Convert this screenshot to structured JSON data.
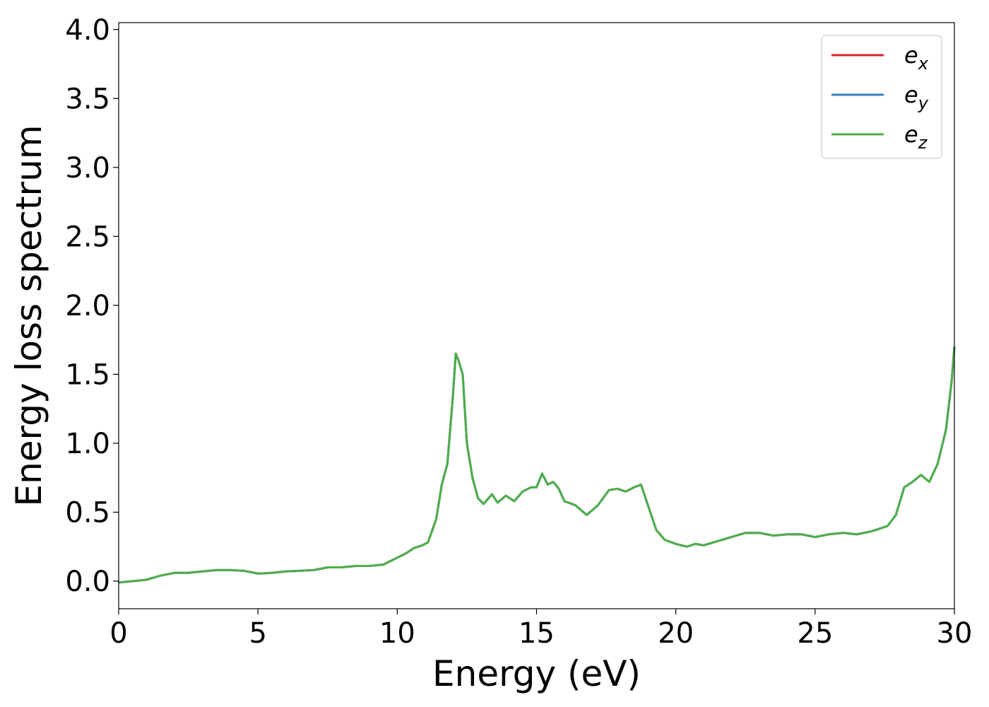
{
  "chart_data": {
    "type": "line",
    "title": "",
    "xlabel": "Energy (eV)",
    "ylabel": "Energy loss spectrum",
    "xlim": [
      0,
      30
    ],
    "ylim": [
      -0.2,
      4.05
    ],
    "xticks": [
      0,
      5,
      10,
      15,
      20,
      25,
      30
    ],
    "xtick_labels": [
      "0",
      "5",
      "10",
      "15",
      "20",
      "25",
      "30"
    ],
    "yticks": [
      0.0,
      0.5,
      1.0,
      1.5,
      2.0,
      2.5,
      3.0,
      3.5,
      4.0
    ],
    "ytick_labels": [
      "0.0",
      "0.5",
      "1.0",
      "1.5",
      "2.0",
      "2.5",
      "3.0",
      "3.5",
      "4.0"
    ],
    "grid": false,
    "legend_position": "top-right",
    "x": [
      0.0,
      0.5,
      1.0,
      1.5,
      2.0,
      2.5,
      3.0,
      3.5,
      4.0,
      4.5,
      5.0,
      5.5,
      6.0,
      6.5,
      7.0,
      7.5,
      8.0,
      8.5,
      9.0,
      9.5,
      10.0,
      10.3,
      10.6,
      10.9,
      11.1,
      11.4,
      11.6,
      11.8,
      12.0,
      12.1,
      12.2,
      12.35,
      12.5,
      12.7,
      12.9,
      13.1,
      13.4,
      13.6,
      13.9,
      14.2,
      14.5,
      14.8,
      15.0,
      15.2,
      15.4,
      15.6,
      15.8,
      16.0,
      16.4,
      16.8,
      17.2,
      17.6,
      17.9,
      18.2,
      18.5,
      18.75,
      19.0,
      19.3,
      19.6,
      20.0,
      20.4,
      20.7,
      21.0,
      21.5,
      22.0,
      22.5,
      23.0,
      23.5,
      24.0,
      24.5,
      25.0,
      25.5,
      26.0,
      26.5,
      27.0,
      27.3,
      27.6,
      27.9,
      28.2,
      28.5,
      28.8,
      29.1,
      29.4,
      29.7,
      29.9,
      30.0
    ],
    "series": [
      {
        "name": "e_x",
        "color": "#d62728",
        "y": [
          -0.01,
          0.0,
          0.01,
          0.04,
          0.06,
          0.06,
          0.07,
          0.08,
          0.08,
          0.075,
          0.055,
          0.06,
          0.07,
          0.075,
          0.08,
          0.1,
          0.1,
          0.11,
          0.11,
          0.12,
          0.17,
          0.2,
          0.24,
          0.26,
          0.28,
          0.45,
          0.7,
          0.85,
          1.35,
          1.65,
          1.6,
          1.5,
          1.0,
          0.75,
          0.6,
          0.56,
          0.63,
          0.57,
          0.62,
          0.58,
          0.65,
          0.68,
          0.68,
          0.78,
          0.7,
          0.72,
          0.67,
          0.58,
          0.55,
          0.48,
          0.55,
          0.66,
          0.67,
          0.65,
          0.68,
          0.7,
          0.55,
          0.37,
          0.3,
          0.27,
          0.25,
          0.27,
          0.26,
          0.29,
          0.32,
          0.35,
          0.35,
          0.33,
          0.34,
          0.34,
          0.32,
          0.34,
          0.35,
          0.34,
          0.36,
          0.38,
          0.4,
          0.48,
          0.68,
          0.72,
          0.77,
          0.72,
          0.85,
          1.1,
          1.45,
          1.7
        ]
      },
      {
        "name": "e_y",
        "color": "#377eb8",
        "y": [
          -0.01,
          0.0,
          0.01,
          0.04,
          0.06,
          0.06,
          0.07,
          0.08,
          0.08,
          0.075,
          0.055,
          0.06,
          0.07,
          0.075,
          0.08,
          0.1,
          0.1,
          0.11,
          0.11,
          0.12,
          0.17,
          0.2,
          0.24,
          0.26,
          0.28,
          0.45,
          0.7,
          0.85,
          1.35,
          1.65,
          1.6,
          1.5,
          1.0,
          0.75,
          0.6,
          0.56,
          0.63,
          0.57,
          0.62,
          0.58,
          0.65,
          0.68,
          0.68,
          0.78,
          0.7,
          0.72,
          0.67,
          0.58,
          0.55,
          0.48,
          0.55,
          0.66,
          0.67,
          0.65,
          0.68,
          0.7,
          0.55,
          0.37,
          0.3,
          0.27,
          0.25,
          0.27,
          0.26,
          0.29,
          0.32,
          0.35,
          0.35,
          0.33,
          0.34,
          0.34,
          0.32,
          0.34,
          0.35,
          0.34,
          0.36,
          0.38,
          0.4,
          0.48,
          0.68,
          0.72,
          0.77,
          0.72,
          0.85,
          1.1,
          1.45,
          1.7
        ]
      },
      {
        "name": "e_z",
        "color": "#4daf4a",
        "y": [
          -0.01,
          0.0,
          0.01,
          0.04,
          0.06,
          0.06,
          0.07,
          0.08,
          0.08,
          0.075,
          0.055,
          0.06,
          0.07,
          0.075,
          0.08,
          0.1,
          0.1,
          0.11,
          0.11,
          0.12,
          0.17,
          0.2,
          0.24,
          0.26,
          0.28,
          0.45,
          0.7,
          0.85,
          1.35,
          1.65,
          1.6,
          1.5,
          1.0,
          0.75,
          0.6,
          0.56,
          0.63,
          0.57,
          0.62,
          0.58,
          0.65,
          0.68,
          0.68,
          0.78,
          0.7,
          0.72,
          0.67,
          0.58,
          0.55,
          0.48,
          0.55,
          0.66,
          0.67,
          0.65,
          0.68,
          0.7,
          0.55,
          0.37,
          0.3,
          0.27,
          0.25,
          0.27,
          0.26,
          0.29,
          0.32,
          0.35,
          0.35,
          0.33,
          0.34,
          0.34,
          0.32,
          0.34,
          0.35,
          0.34,
          0.36,
          0.38,
          0.4,
          0.48,
          0.68,
          0.72,
          0.77,
          0.72,
          0.85,
          1.1,
          1.45,
          1.7
        ]
      }
    ],
    "legend": [
      {
        "base": "e",
        "sub": "x",
        "color": "#d62728"
      },
      {
        "base": "e",
        "sub": "y",
        "color": "#377eb8"
      },
      {
        "base": "e",
        "sub": "z",
        "color": "#4daf4a"
      }
    ]
  }
}
